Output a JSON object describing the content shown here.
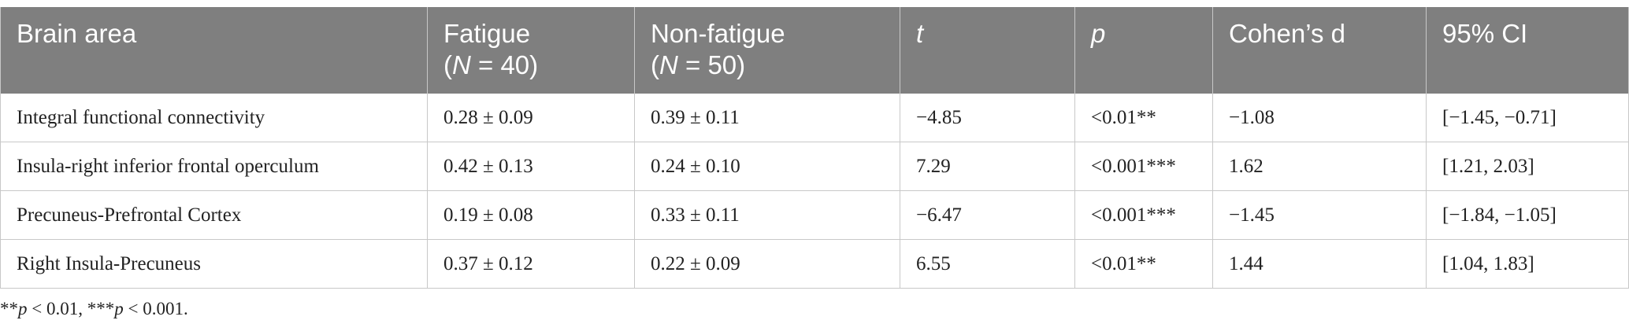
{
  "table": {
    "header": [
      {
        "parts": [
          "Brain area"
        ]
      },
      {
        "parts": [
          "Fatigue"
        ],
        "sub": [
          "(",
          "N",
          " = 40)"
        ]
      },
      {
        "parts": [
          "Non-fatigue"
        ],
        "sub": [
          "(",
          "N",
          " = 50)"
        ]
      },
      {
        "italic": "t"
      },
      {
        "italic": "p"
      },
      {
        "parts": [
          "Cohen’s d"
        ]
      },
      {
        "parts": [
          "95% CI"
        ]
      }
    ],
    "rows": [
      [
        "Integral functional connectivity",
        "0.28 ± 0.09",
        "0.39 ± 0.11",
        "−4.85",
        "<0.01**",
        "−1.08",
        "[−1.45, −0.71]"
      ],
      [
        "Insula-right inferior frontal operculum",
        "0.42 ± 0.13",
        "0.24 ± 0.10",
        "7.29",
        "<0.001***",
        "1.62",
        "[1.21, 2.03]"
      ],
      [
        "Precuneus-Prefrontal Cortex",
        "0.19 ± 0.08",
        "0.33 ± 0.11",
        "−6.47",
        "<0.001***",
        "−1.45",
        "[−1.84, −1.05]"
      ],
      [
        "Right Insula-Precuneus",
        "0.37 ± 0.12",
        "0.22 ± 0.09",
        "6.55",
        "<0.01**",
        "1.44",
        "[1.04, 1.83]"
      ]
    ]
  },
  "footnote": [
    "**",
    "p",
    " < 0.01, ***",
    "p",
    " < 0.001."
  ]
}
